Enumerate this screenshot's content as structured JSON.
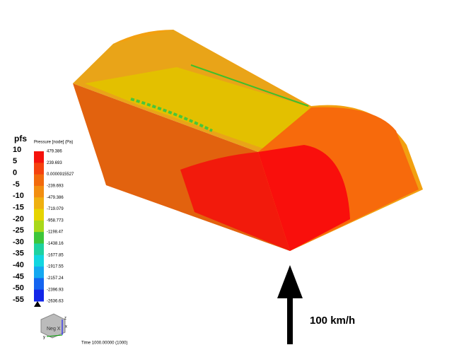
{
  "pfs_scale": {
    "title": "pfs",
    "labels": [
      "10",
      "5",
      "0",
      "-5",
      "-10",
      "-15",
      "-20",
      "-25",
      "-30",
      "-35",
      "-40",
      "-45",
      "-50",
      "-55"
    ]
  },
  "legend": {
    "title": "Pressure [node] (Pa)",
    "labels": [
      "479.386",
      "239.693",
      "0.0000915527",
      "-239.693",
      "-479.386",
      "-719.079",
      "-958.773",
      "-1198.47",
      "-1438.16",
      "-1677.85",
      "-1917.55",
      "-2157.24",
      "-2396.93",
      "-2636.63"
    ]
  },
  "orientation": {
    "view": "Neg X",
    "axes": [
      "z",
      "x",
      "y"
    ]
  },
  "time": "Time 1000.00000 (1000)",
  "flow": {
    "label": "100 km/h"
  }
}
